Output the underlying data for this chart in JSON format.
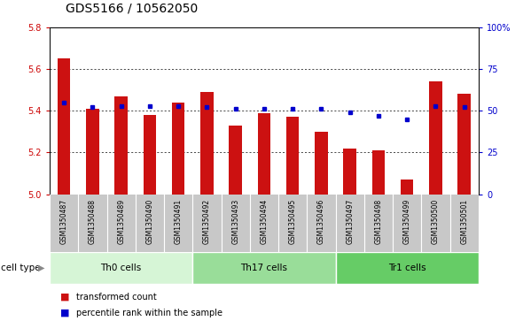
{
  "title": "GDS5166 / 10562050",
  "samples": [
    "GSM1350487",
    "GSM1350488",
    "GSM1350489",
    "GSM1350490",
    "GSM1350491",
    "GSM1350492",
    "GSM1350493",
    "GSM1350494",
    "GSM1350495",
    "GSM1350496",
    "GSM1350497",
    "GSM1350498",
    "GSM1350499",
    "GSM1350500",
    "GSM1350501"
  ],
  "red_values": [
    5.65,
    5.41,
    5.47,
    5.38,
    5.44,
    5.49,
    5.33,
    5.39,
    5.37,
    5.3,
    5.22,
    5.21,
    5.07,
    5.54,
    5.48
  ],
  "blue_values": [
    55,
    52,
    53,
    53,
    53,
    52,
    51,
    51,
    51,
    51,
    49,
    47,
    45,
    53,
    52
  ],
  "ylim_left": [
    5.0,
    5.8
  ],
  "ylim_right": [
    0,
    100
  ],
  "yticks_left": [
    5.0,
    5.2,
    5.4,
    5.6,
    5.8
  ],
  "yticks_right": [
    0,
    25,
    50,
    75,
    100
  ],
  "ytick_labels_right": [
    "0",
    "25",
    "50",
    "75",
    "100%"
  ],
  "cell_groups": [
    {
      "label": "Th0 cells",
      "start": 0,
      "end": 4,
      "color": "#d6f5d6"
    },
    {
      "label": "Th17 cells",
      "start": 5,
      "end": 9,
      "color": "#99dd99"
    },
    {
      "label": "Tr1 cells",
      "start": 10,
      "end": 14,
      "color": "#66cc66"
    }
  ],
  "bar_color": "#cc1111",
  "dot_color": "#0000cc",
  "bar_bottom": 5.0,
  "tick_area_color": "#c8c8c8",
  "legend_red_label": "transformed count",
  "legend_blue_label": "percentile rank within the sample",
  "cell_type_label": "cell type",
  "title_fontsize": 10,
  "tick_fontsize": 7,
  "axis_label_color_left": "#cc0000",
  "axis_label_color_right": "#0000cc"
}
